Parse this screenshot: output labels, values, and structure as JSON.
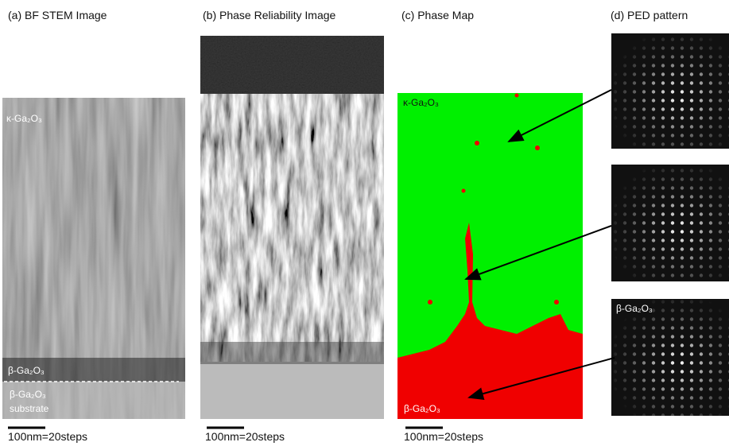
{
  "panels": [
    {
      "title": "(a) BF STEM Image",
      "labels": [
        "κ-Ga₂O₃",
        "β-Ga₂O₃",
        "β-Ga₂O₃",
        "substrate"
      ],
      "scale_bar": "100nm=20steps"
    },
    {
      "title": "(b) Phase Reliability Image",
      "scale_bar": "100nm=20steps"
    },
    {
      "title": "(c) Phase Map",
      "labels": [
        "κ-Ga₂O₃",
        "β-Ga₂O₃"
      ],
      "scale_bar": "100nm=20steps"
    },
    {
      "title": "(d) PED pattern",
      "labels": [
        "β-Ga₂O₃"
      ]
    }
  ]
}
